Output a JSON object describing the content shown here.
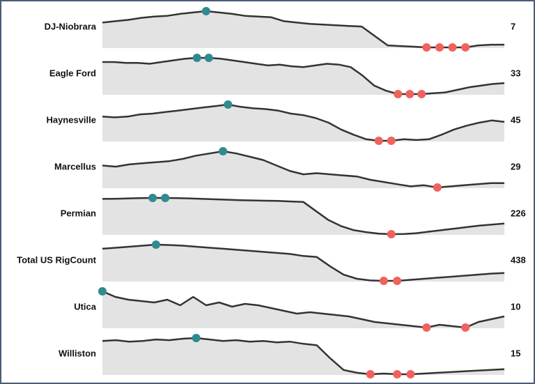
{
  "chart_data": {
    "type": "sparkline",
    "area_color": "#e3e3e3",
    "line_color": "#333333",
    "max_color": "#2e8b8f",
    "min_color": "#f0625d",
    "series": [
      {
        "name": "DJ-Niobrara",
        "values": [
          40,
          42,
          44,
          47,
          49,
          50,
          53,
          55,
          57,
          55,
          53,
          50,
          49,
          48,
          42,
          40,
          38,
          37,
          36,
          35,
          34,
          20,
          6,
          5,
          4,
          3,
          3,
          3,
          3,
          6,
          7,
          7
        ]
      },
      {
        "name": "Eagle Ford",
        "values": [
          58,
          58,
          57,
          57,
          56,
          58,
          60,
          62,
          63,
          63,
          62,
          60,
          58,
          56,
          54,
          55,
          53,
          52,
          54,
          56,
          55,
          52,
          42,
          30,
          24,
          20,
          20,
          20,
          21,
          22,
          25,
          28,
          30,
          32,
          33
        ]
      },
      {
        "name": "Haynesville",
        "values": [
          52,
          51,
          52,
          55,
          56,
          58,
          60,
          62,
          64,
          66,
          68,
          65,
          63,
          62,
          60,
          56,
          54,
          50,
          44,
          35,
          28,
          22,
          20,
          20,
          22,
          21,
          22,
          28,
          35,
          40,
          44,
          47,
          45
        ]
      },
      {
        "name": "Marcellus",
        "values": [
          45,
          44,
          46,
          47,
          48,
          49,
          51,
          54,
          56,
          58,
          56,
          53,
          50,
          45,
          40,
          37,
          38,
          37,
          36,
          35,
          32,
          30,
          28,
          26,
          27,
          25,
          26,
          27,
          28,
          29,
          29
        ]
      },
      {
        "name": "Permian",
        "values": [
          470,
          472,
          475,
          478,
          480,
          480,
          478,
          475,
          470,
          466,
          462,
          458,
          455,
          452,
          450,
          445,
          440,
          350,
          260,
          200,
          160,
          140,
          125,
          120,
          122,
          130,
          145,
          160,
          175,
          190,
          205,
          215,
          226
        ]
      },
      {
        "name": "Total US RigCount",
        "values": [
          555,
          560,
          565,
          570,
          575,
          573,
          570,
          565,
          560,
          555,
          550,
          545,
          540,
          535,
          530,
          520,
          515,
          470,
          430,
          410,
          402,
          400,
          400,
          405,
          410,
          415,
          420,
          425,
          430,
          435,
          438
        ]
      },
      {
        "name": "Utica",
        "values": [
          28,
          24,
          22,
          21,
          20,
          22,
          18,
          24,
          18,
          20,
          17,
          19,
          18,
          16,
          14,
          12,
          13,
          12,
          11,
          10,
          8,
          6,
          5,
          4,
          3,
          2,
          4,
          3,
          2,
          6,
          8,
          10
        ]
      },
      {
        "name": "Williston",
        "values": [
          54,
          55,
          53,
          54,
          56,
          55,
          57,
          58,
          56,
          54,
          55,
          53,
          54,
          52,
          53,
          50,
          48,
          30,
          14,
          10,
          8,
          9,
          8,
          8,
          9,
          10,
          11,
          12,
          13,
          14,
          15
        ]
      }
    ]
  }
}
